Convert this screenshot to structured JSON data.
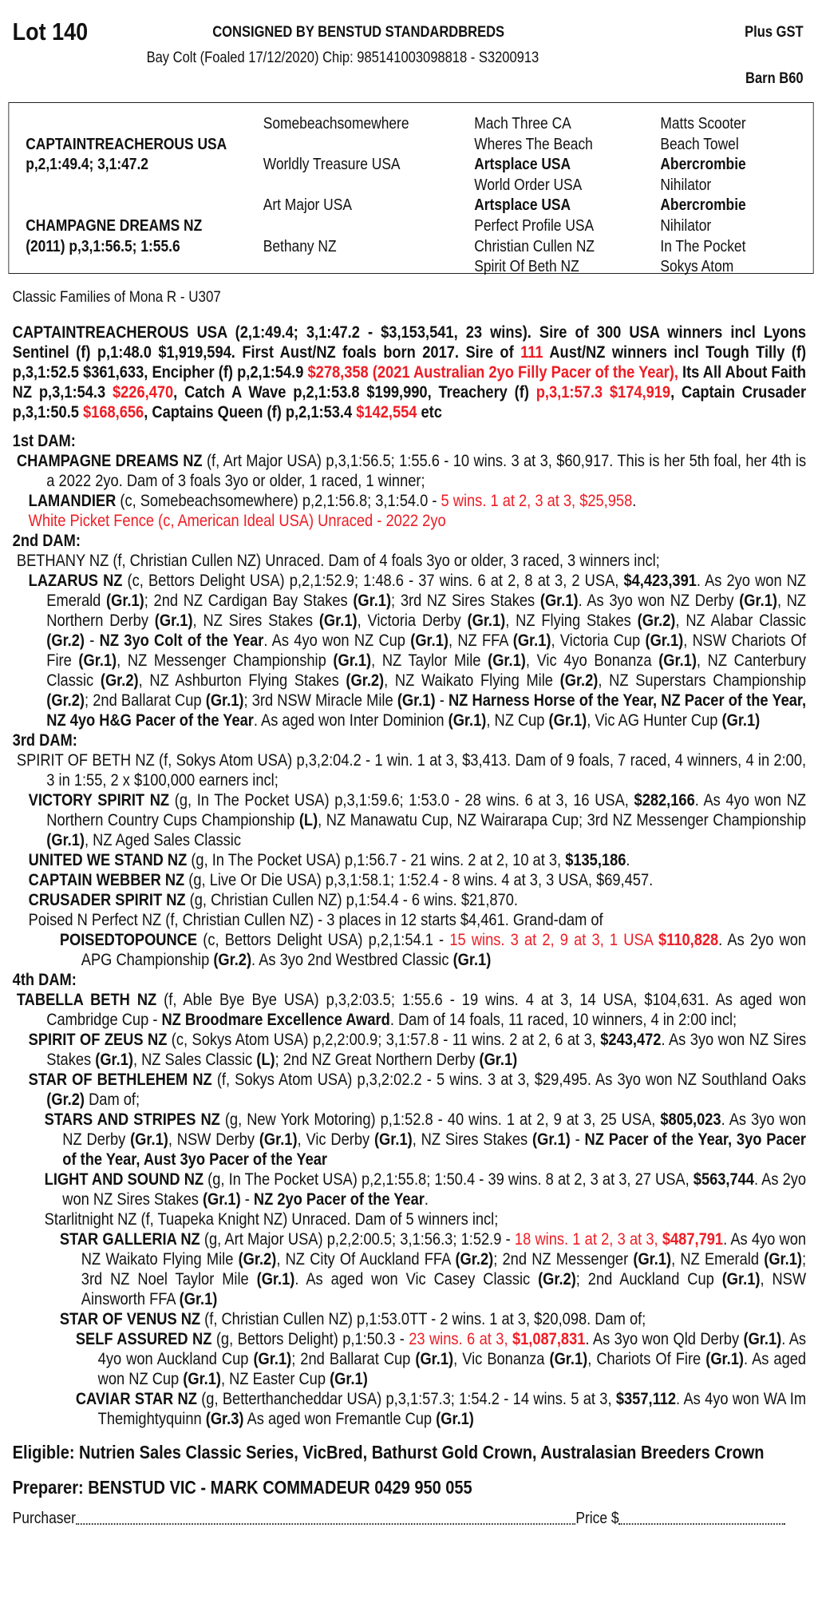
{
  "header": {
    "lot": "Lot 140",
    "consigned": "CONSIGNED BY BENSTUD STANDARDBREDS",
    "gst": "Plus GST",
    "subtitle": "Bay Colt (Foaled 17/12/2020) Chip: 985141003098818 - S3200913",
    "barn": "Barn B60"
  },
  "colors": {
    "highlight": "#ee1c24",
    "text": "#111111"
  },
  "pedigree": {
    "col1": [
      {
        "row": 1,
        "t": "CAPTAINTREACHEROUS USA",
        "bold": true
      },
      {
        "row": 2,
        "t": "p,2,1:49.4; 3,1:47.2",
        "bold": true
      },
      {
        "row": 5,
        "t": "CHAMPAGNE DREAMS NZ",
        "bold": true
      },
      {
        "row": 6,
        "t": "(2011) p,3,1:56.5; 1:55.6",
        "bold": true
      }
    ],
    "col2": [
      {
        "row": 0,
        "t": "Somebeachsomewhere",
        "bold": false
      },
      {
        "row": 2,
        "t": "Worldly Treasure USA",
        "bold": false
      },
      {
        "row": 4,
        "t": "Art Major USA",
        "bold": false
      },
      {
        "row": 6,
        "t": "Bethany NZ",
        "bold": false
      }
    ],
    "col3": [
      {
        "row": 0,
        "t": "Mach Three CA",
        "bold": false
      },
      {
        "row": 1,
        "t": "Wheres The Beach",
        "bold": false
      },
      {
        "row": 2,
        "t": "Artsplace USA",
        "bold": true
      },
      {
        "row": 3,
        "t": "World Order USA",
        "bold": false
      },
      {
        "row": 4,
        "t": "Artsplace USA",
        "bold": true
      },
      {
        "row": 5,
        "t": "Perfect Profile USA",
        "bold": false
      },
      {
        "row": 6,
        "t": "Christian Cullen NZ",
        "bold": false
      },
      {
        "row": 7,
        "t": "Spirit Of Beth NZ",
        "bold": false
      }
    ],
    "col4": [
      {
        "row": 0,
        "t": "Matts Scooter",
        "bold": false
      },
      {
        "row": 1,
        "t": "Beach Towel",
        "bold": false
      },
      {
        "row": 2,
        "t": "Abercrombie",
        "bold": true
      },
      {
        "row": 3,
        "t": "Nihilator",
        "bold": false
      },
      {
        "row": 4,
        "t": "Abercrombie",
        "bold": true
      },
      {
        "row": 5,
        "t": "Nihilator",
        "bold": false
      },
      {
        "row": 6,
        "t": "In The Pocket",
        "bold": false
      },
      {
        "row": 7,
        "t": "Sokys Atom",
        "bold": false
      }
    ]
  },
  "classic_families": "Classic Families of Mona R - U307",
  "sire_summary": [
    "CAPTAINTREACHEROUS USA (2,1:49.4; 3,1:47.2 - $3,153,541, 23 wins). Sire of 300 USA winners incl Lyons Sentinel (f) p,1:48.0 $1,919,594. First Aust/NZ foals born 2017. Sire of ",
    {
      "r": "111"
    },
    " Aust/NZ winners incl Tough Tilly (f) p,3,1:52.5 $361,633, Encipher (f) p,2,1:54.9 ",
    {
      "r": "$278,358 (2021 Australian 2yo Filly Pacer of the Year),"
    },
    " Its All About Faith NZ p,3,1:54.3 ",
    {
      "r": "$226,470"
    },
    ", Catch A Wave p,2,1:53.8 $199,990, Treachery (f) ",
    {
      "r": "p,3,1:57.3 $174,919"
    },
    ", Captain Crusader p,3,1:50.5 ",
    {
      "r": "$168,656"
    },
    ", Captains Queen (f) p,2,1:53.4 ",
    {
      "r": "$142,554"
    },
    " etc"
  ],
  "dams": [
    {
      "heading": "1st DAM:",
      "entries": [
        {
          "level": 0,
          "runs": [
            {
              "b": "CHAMPAGNE DREAMS NZ"
            },
            " (f, Art Major USA) p,3,1:56.5; 1:55.6 - 10 wins. 3 at 3, $60,917. This is her 5th foal, her 4th is a 2022 2yo. Dam of 3 foals 3yo or older, 1 raced, 1 winner;"
          ]
        },
        {
          "level": 1,
          "runs": [
            {
              "b": "LAMANDIER"
            },
            " (c, Somebeachsomewhere) p,2,1:56.8; 3,1:54.0 - ",
            {
              "r": "5 wins. 1 at 2, 3 at 3, $25,958"
            },
            "."
          ]
        },
        {
          "level": 1,
          "runs": [
            {
              "r": "White Picket Fence (c, American Ideal USA) Unraced - 2022 2yo"
            }
          ]
        }
      ]
    },
    {
      "heading": "2nd DAM:",
      "entries": [
        {
          "level": 0,
          "runs": [
            "BETHANY NZ (f, Christian Cullen NZ) Unraced. Dam of 4 foals 3yo or older, 3 raced, 3 winners incl;"
          ]
        },
        {
          "level": 1,
          "runs": [
            {
              "b": "LAZARUS NZ"
            },
            " (c, Bettors Delight USA) p,2,1:52.9; 1:48.6 - 37 wins. 6 at 2, 8 at 3, 2 USA, ",
            {
              "b": "$4,423,391"
            },
            ". As 2yo won NZ Emerald ",
            {
              "b": "(Gr.1)"
            },
            "; 2nd NZ Cardigan Bay Stakes ",
            {
              "b": "(Gr.1)"
            },
            "; 3rd NZ Sires Stakes ",
            {
              "b": "(Gr.1)"
            },
            ". As 3yo won NZ Derby ",
            {
              "b": "(Gr.1)"
            },
            ", NZ Northern Derby ",
            {
              "b": "(Gr.1)"
            },
            ", NZ Sires Stakes ",
            {
              "b": "(Gr.1)"
            },
            ", Victoria Derby ",
            {
              "b": "(Gr.1)"
            },
            ", NZ Flying Stakes ",
            {
              "b": "(Gr.2)"
            },
            ", NZ Alabar Classic ",
            {
              "b": "(Gr.2)"
            },
            " - ",
            {
              "b": "NZ 3yo Colt of the Year"
            },
            ". As 4yo won NZ Cup ",
            {
              "b": "(Gr.1)"
            },
            ", NZ FFA ",
            {
              "b": "(Gr.1)"
            },
            ", Victoria Cup ",
            {
              "b": "(Gr.1)"
            },
            ", NSW Chariots Of Fire ",
            {
              "b": "(Gr.1)"
            },
            ", NZ Messenger Championship ",
            {
              "b": "(Gr.1)"
            },
            ", NZ Taylor Mile ",
            {
              "b": "(Gr.1)"
            },
            ", Vic 4yo Bonanza ",
            {
              "b": "(Gr.1)"
            },
            ", NZ Canterbury Classic ",
            {
              "b": "(Gr.2)"
            },
            ", NZ Ashburton Flying Stakes ",
            {
              "b": "(Gr.2)"
            },
            ", NZ Waikato Flying Mile ",
            {
              "b": "(Gr.2)"
            },
            ", NZ Superstars Championship ",
            {
              "b": "(Gr.2)"
            },
            "; 2nd Ballarat Cup ",
            {
              "b": "(Gr.1)"
            },
            "; 3rd NSW Miracle Mile ",
            {
              "b": "(Gr.1)"
            },
            " - ",
            {
              "b": "NZ Harness Horse of the Year, NZ Pacer of the Year, NZ 4yo H&G Pacer of the Year"
            },
            ". As aged won Inter Dominion ",
            {
              "b": "(Gr.1)"
            },
            ", NZ Cup ",
            {
              "b": "(Gr.1)"
            },
            ", Vic AG Hunter Cup ",
            {
              "b": "(Gr.1)"
            }
          ]
        }
      ]
    },
    {
      "heading": "3rd DAM:",
      "entries": [
        {
          "level": 0,
          "runs": [
            "SPIRIT OF BETH NZ (f, Sokys Atom USA) p,3,2:04.2 - 1 win. 1 at 3, $3,413. Dam of 9 foals, 7 raced, 4 winners, 4 in 2:00, 3 in 1:55, 2 x $100,000 earners incl;"
          ]
        },
        {
          "level": 1,
          "runs": [
            {
              "b": "VICTORY SPIRIT NZ"
            },
            " (g, In The Pocket USA) p,3,1:59.6; 1:53.0 - 28 wins. 6 at 3, 16 USA, ",
            {
              "b": "$282,166"
            },
            ". As 4yo won NZ Northern Country Cups Championship ",
            {
              "b": "(L)"
            },
            ", NZ Manawatu Cup, NZ Wairarapa Cup; 3rd NZ Messenger Championship ",
            {
              "b": "(Gr.1)"
            },
            ", NZ Aged Sales Classic"
          ]
        },
        {
          "level": 1,
          "runs": [
            {
              "b": "UNITED WE STAND NZ"
            },
            " (g, In The Pocket USA) p,1:56.7 - 21 wins. 2 at 2, 10 at 3, ",
            {
              "b": "$135,186"
            },
            "."
          ]
        },
        {
          "level": 1,
          "runs": [
            {
              "b": "CAPTAIN WEBBER NZ"
            },
            " (g, Live Or Die USA) p,3,1:58.1; 1:52.4 - 8 wins. 4 at 3, 3 USA, $69,457."
          ]
        },
        {
          "level": 1,
          "runs": [
            {
              "b": "CRUSADER SPIRIT NZ"
            },
            " (g, Christian Cullen NZ) p,1:54.4 - 6 wins. $21,870."
          ]
        },
        {
          "level": 1,
          "runs": [
            "Poised N Perfect NZ (f, Christian Cullen NZ) - 3 places in 12 starts $4,461. Grand-dam of"
          ]
        },
        {
          "level": 3,
          "runs": [
            {
              "b": "POISEDTOPOUNCE"
            },
            " (c, Bettors Delight USA) p,2,1:54.1 - ",
            {
              "r": "15 wins. 3 at 2, 9 at 3, 1 USA "
            },
            {
              "br": "$110,828"
            },
            ". As 2yo won APG Championship ",
            {
              "b": "(Gr.2)"
            },
            ". As 3yo 2nd Westbred Classic ",
            {
              "b": "(Gr.1)"
            }
          ]
        }
      ]
    },
    {
      "heading": "4th DAM:",
      "entries": [
        {
          "level": 0,
          "runs": [
            {
              "b": "TABELLA BETH NZ"
            },
            " (f, Able Bye Bye USA) p,3,2:03.5; 1:55.6 - 19 wins. 4 at 3, 14 USA, $104,631. As aged won Cambridge Cup - ",
            {
              "b": "NZ Broodmare Excellence Award"
            },
            ". Dam of 14 foals, 11 raced, 10 winners, 4 in 2:00 incl;"
          ]
        },
        {
          "level": 1,
          "runs": [
            {
              "b": "SPIRIT OF ZEUS NZ"
            },
            " (c, Sokys Atom USA) p,2,2:00.9; 3,1:57.8 - 11 wins. 2 at 2, 6 at 3, ",
            {
              "b": "$243,472"
            },
            ". As 3yo won NZ Sires Stakes ",
            {
              "b": "(Gr.1)"
            },
            ", NZ Sales Classic ",
            {
              "b": "(L)"
            },
            "; 2nd NZ Great Northern Derby ",
            {
              "b": "(Gr.1)"
            }
          ]
        },
        {
          "level": 1,
          "runs": [
            {
              "b": "STAR OF BETHLEHEM NZ"
            },
            " (f, Sokys Atom USA) p,3,2:02.2 - 5 wins. 3 at 3, $29,495. As 3yo won NZ Southland Oaks ",
            {
              "b": "(Gr.2)"
            },
            " Dam of;"
          ]
        },
        {
          "level": 2,
          "runs": [
            {
              "b": "STARS AND STRIPES NZ"
            },
            " (g, New York Motoring) p,1:52.8 - 40 wins. 1 at 2, 9 at 3, 25 USA, ",
            {
              "b": "$805,023"
            },
            ". As 3yo won NZ Derby ",
            {
              "b": "(Gr.1)"
            },
            ", NSW Derby ",
            {
              "b": "(Gr.1)"
            },
            ", Vic Derby ",
            {
              "b": "(Gr.1)"
            },
            ", NZ Sires Stakes ",
            {
              "b": "(Gr.1)"
            },
            " - ",
            {
              "b": "NZ Pacer of the Year, 3yo Pacer of the Year, Aust 3yo Pacer of the Year"
            }
          ]
        },
        {
          "level": 2,
          "runs": [
            {
              "b": "LIGHT AND SOUND NZ"
            },
            " (g, In The Pocket USA) p,2,1:55.8; 1:50.4 - 39 wins. 8 at 2, 3 at 3, 27 USA, ",
            {
              "b": "$563,744"
            },
            ". As 2yo won NZ Sires Stakes ",
            {
              "b": "(Gr.1)"
            },
            " - ",
            {
              "b": "NZ 2yo Pacer of the Year"
            },
            "."
          ]
        },
        {
          "level": 2,
          "runs": [
            "Starlitnight NZ (f, Tuapeka Knight NZ) Unraced. Dam of 5 winners incl;"
          ]
        },
        {
          "level": 3,
          "runs": [
            {
              "b": "STAR GALLERIA NZ"
            },
            " (g, Art Major USA) p,2,2:00.5; 3,1:56.3; 1:52.9 - ",
            {
              "r": "18 wins. 1 at 2, 3 at 3, "
            },
            {
              "br": "$487,791"
            },
            ". As 4yo won NZ Waikato Flying Mile ",
            {
              "b": "(Gr.2)"
            },
            ", NZ City Of Auckland FFA ",
            {
              "b": "(Gr.2)"
            },
            "; 2nd NZ Messenger ",
            {
              "b": "(Gr.1)"
            },
            ", NZ Emerald ",
            {
              "b": "(Gr.1)"
            },
            "; 3rd NZ Noel Taylor Mile ",
            {
              "b": "(Gr.1)"
            },
            ". As aged won Vic Casey Classic ",
            {
              "b": "(Gr.2)"
            },
            "; 2nd Auckland Cup ",
            {
              "b": "(Gr.1)"
            },
            ", NSW Ainsworth FFA ",
            {
              "b": "(Gr.1)"
            }
          ]
        },
        {
          "level": 3,
          "runs": [
            {
              "b": "STAR OF VENUS NZ"
            },
            " (f, Christian Cullen NZ) p,1:53.0TT - 2 wins. 1 at 3, $20,098. Dam of;"
          ]
        },
        {
          "level": 4,
          "runs": [
            {
              "b": "SELF ASSURED NZ"
            },
            " (g, Bettors Delight) p,1:50.3 - ",
            {
              "r": "23 wins. 6 at 3, "
            },
            {
              "br": "$1,087,831"
            },
            ". As 3yo won Qld Derby ",
            {
              "b": "(Gr.1)"
            },
            ". As 4yo won Auckland Cup ",
            {
              "b": "(Gr.1)"
            },
            "; 2nd Ballarat Cup ",
            {
              "b": "(Gr.1)"
            },
            ", Vic Bonanza ",
            {
              "b": "(Gr.1)"
            },
            ", Chariots Of Fire ",
            {
              "b": "(Gr.1)"
            },
            ". As aged won NZ Cup ",
            {
              "b": "(Gr.1)"
            },
            ", NZ Easter Cup ",
            {
              "b": "(Gr.1)"
            }
          ]
        },
        {
          "level": 4,
          "runs": [
            {
              "b": "CAVIAR STAR NZ"
            },
            " (g, Betterthancheddar USA) p,3,1:57.3; 1:54.2 - 14 wins. 5 at 3, ",
            {
              "b": "$357,112"
            },
            ". As 4yo won WA Im Themightyquinn ",
            {
              "b": "(Gr.3)"
            },
            " As aged won Fremantle Cup ",
            {
              "b": "(Gr.1)"
            }
          ]
        }
      ]
    }
  ],
  "footer": {
    "eligible": "Eligible: Nutrien Sales Classic Series, VicBred, Bathurst Gold Crown, Australasian Breeders Crown",
    "preparer": "Preparer: BENSTUD VIC - MARK COMMADEUR 0429 950 055",
    "purchaser_label": "Purchaser",
    "price_label": "Price $"
  }
}
